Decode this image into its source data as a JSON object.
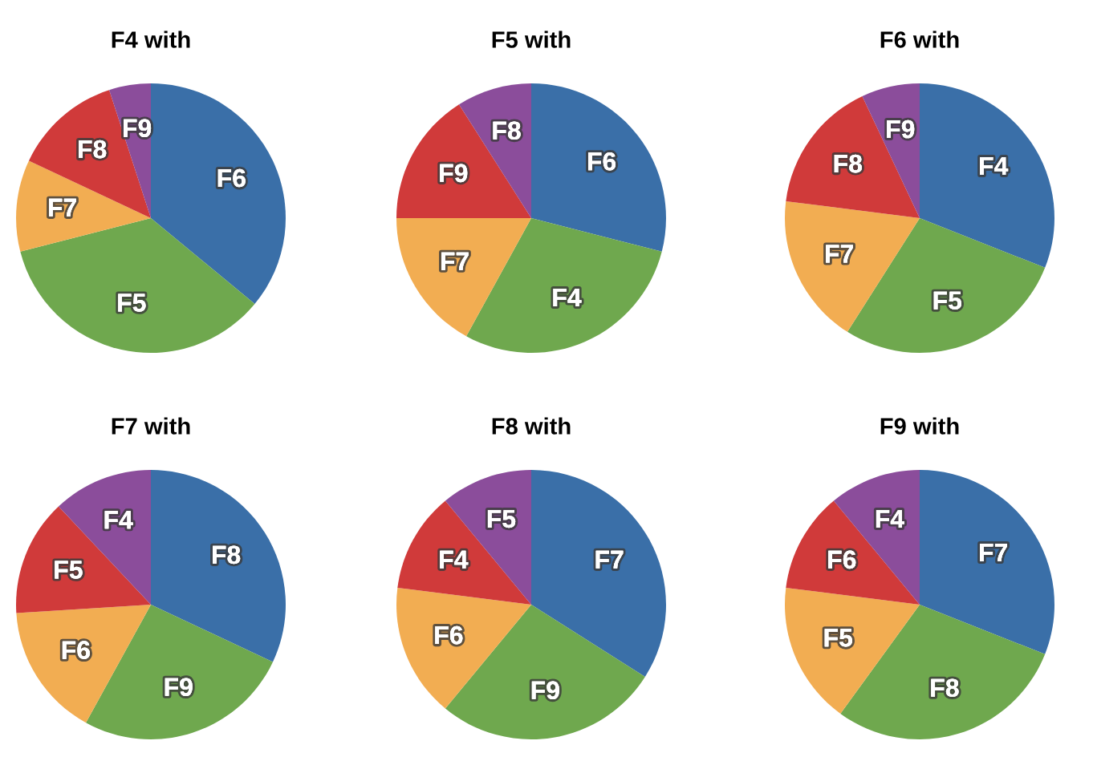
{
  "chart_data": [
    {
      "type": "pie",
      "title": "F4 with",
      "categories": [
        "F6",
        "F5",
        "F7",
        "F8",
        "F9"
      ],
      "values": [
        36,
        35,
        11,
        13,
        5
      ],
      "colors": [
        "#3a6fa8",
        "#6fa84e",
        "#f2ad52",
        "#d03a3a",
        "#8b4d9b"
      ]
    },
    {
      "type": "pie",
      "title": "F5 with",
      "categories": [
        "F6",
        "F4",
        "F7",
        "F9",
        "F8"
      ],
      "values": [
        29,
        29,
        17,
        16,
        9
      ],
      "colors": [
        "#3a6fa8",
        "#6fa84e",
        "#f2ad52",
        "#d03a3a",
        "#8b4d9b"
      ]
    },
    {
      "type": "pie",
      "title": "F6 with",
      "categories": [
        "F4",
        "F5",
        "F7",
        "F8",
        "F9"
      ],
      "values": [
        31,
        28,
        18,
        16,
        7
      ],
      "colors": [
        "#3a6fa8",
        "#6fa84e",
        "#f2ad52",
        "#d03a3a",
        "#8b4d9b"
      ]
    },
    {
      "type": "pie",
      "title": "F7 with",
      "categories": [
        "F8",
        "F9",
        "F6",
        "F5",
        "F4"
      ],
      "values": [
        32,
        26,
        16,
        14,
        12
      ],
      "colors": [
        "#3a6fa8",
        "#6fa84e",
        "#f2ad52",
        "#d03a3a",
        "#8b4d9b"
      ]
    },
    {
      "type": "pie",
      "title": "F8 with",
      "categories": [
        "F7",
        "F9",
        "F6",
        "F4",
        "F5"
      ],
      "values": [
        34,
        27,
        16,
        12,
        11
      ],
      "colors": [
        "#3a6fa8",
        "#6fa84e",
        "#f2ad52",
        "#d03a3a",
        "#8b4d9b"
      ]
    },
    {
      "type": "pie",
      "title": "F9 with",
      "categories": [
        "F7",
        "F8",
        "F5",
        "F6",
        "F4"
      ],
      "values": [
        31,
        29,
        17,
        12,
        11
      ],
      "colors": [
        "#3a6fa8",
        "#6fa84e",
        "#f2ad52",
        "#d03a3a",
        "#8b4d9b"
      ]
    }
  ]
}
